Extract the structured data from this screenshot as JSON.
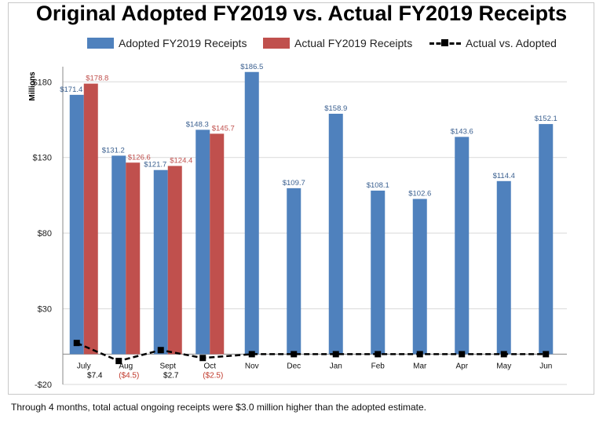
{
  "chart_data": {
    "type": "bar",
    "title": "Original Adopted FY2019 vs. Actual FY2019 Receipts",
    "ylabel": "Millions",
    "ylim": [
      -20,
      190
    ],
    "yticks": [
      -20,
      30,
      80,
      130,
      180
    ],
    "ytick_labels": [
      "-$20",
      "$30",
      "$80",
      "$130",
      "$180"
    ],
    "grid": true,
    "legend_position": "top",
    "categories": [
      "July",
      "Aug",
      "Sept",
      "Oct",
      "Nov",
      "Dec",
      "Jan",
      "Feb",
      "Mar",
      "Apr",
      "May",
      "Jun"
    ],
    "series": [
      {
        "name": "Adopted FY2019 Receipts",
        "kind": "bar",
        "color": "#4f81bd",
        "values": [
          171.4,
          131.2,
          121.7,
          148.3,
          186.5,
          109.7,
          158.9,
          108.1,
          102.6,
          143.6,
          114.4,
          152.1
        ],
        "labels": [
          "$171.4",
          "$131.2",
          "$121.7",
          "$148.3",
          "$186.5",
          "$109.7",
          "$158.9",
          "$108.1",
          "$102.6",
          "$143.6",
          "$114.4",
          "$152.1"
        ],
        "label_color": "#3a5f8f"
      },
      {
        "name": "Actual FY2019 Receipts",
        "kind": "bar",
        "color": "#c0504d",
        "values": [
          178.8,
          126.6,
          124.4,
          145.7,
          null,
          null,
          null,
          null,
          null,
          null,
          null,
          null
        ],
        "labels": [
          "$178.8",
          "$126.6",
          "$124.4",
          "$145.7",
          "",
          "",
          "",
          "",
          "",
          "",
          "",
          ""
        ],
        "label_color": "#c0504d"
      },
      {
        "name": "Actual vs. Adopted",
        "kind": "line",
        "color": "#000000",
        "values": [
          7.4,
          -4.5,
          2.7,
          -2.5,
          0,
          0,
          0,
          0,
          0,
          0,
          0,
          0
        ],
        "labels": [
          "$7.4",
          "($4.5)",
          "$2.7",
          "($2.5)",
          "",
          "",
          "",
          "",
          "",
          "",
          "",
          ""
        ],
        "label_colors": [
          "#000000",
          "#c0392b",
          "#000000",
          "#c0392b"
        ]
      }
    ]
  },
  "footnote": "Through 4 months, total actual ongoing receipts were $3.0 million higher than the adopted estimate."
}
